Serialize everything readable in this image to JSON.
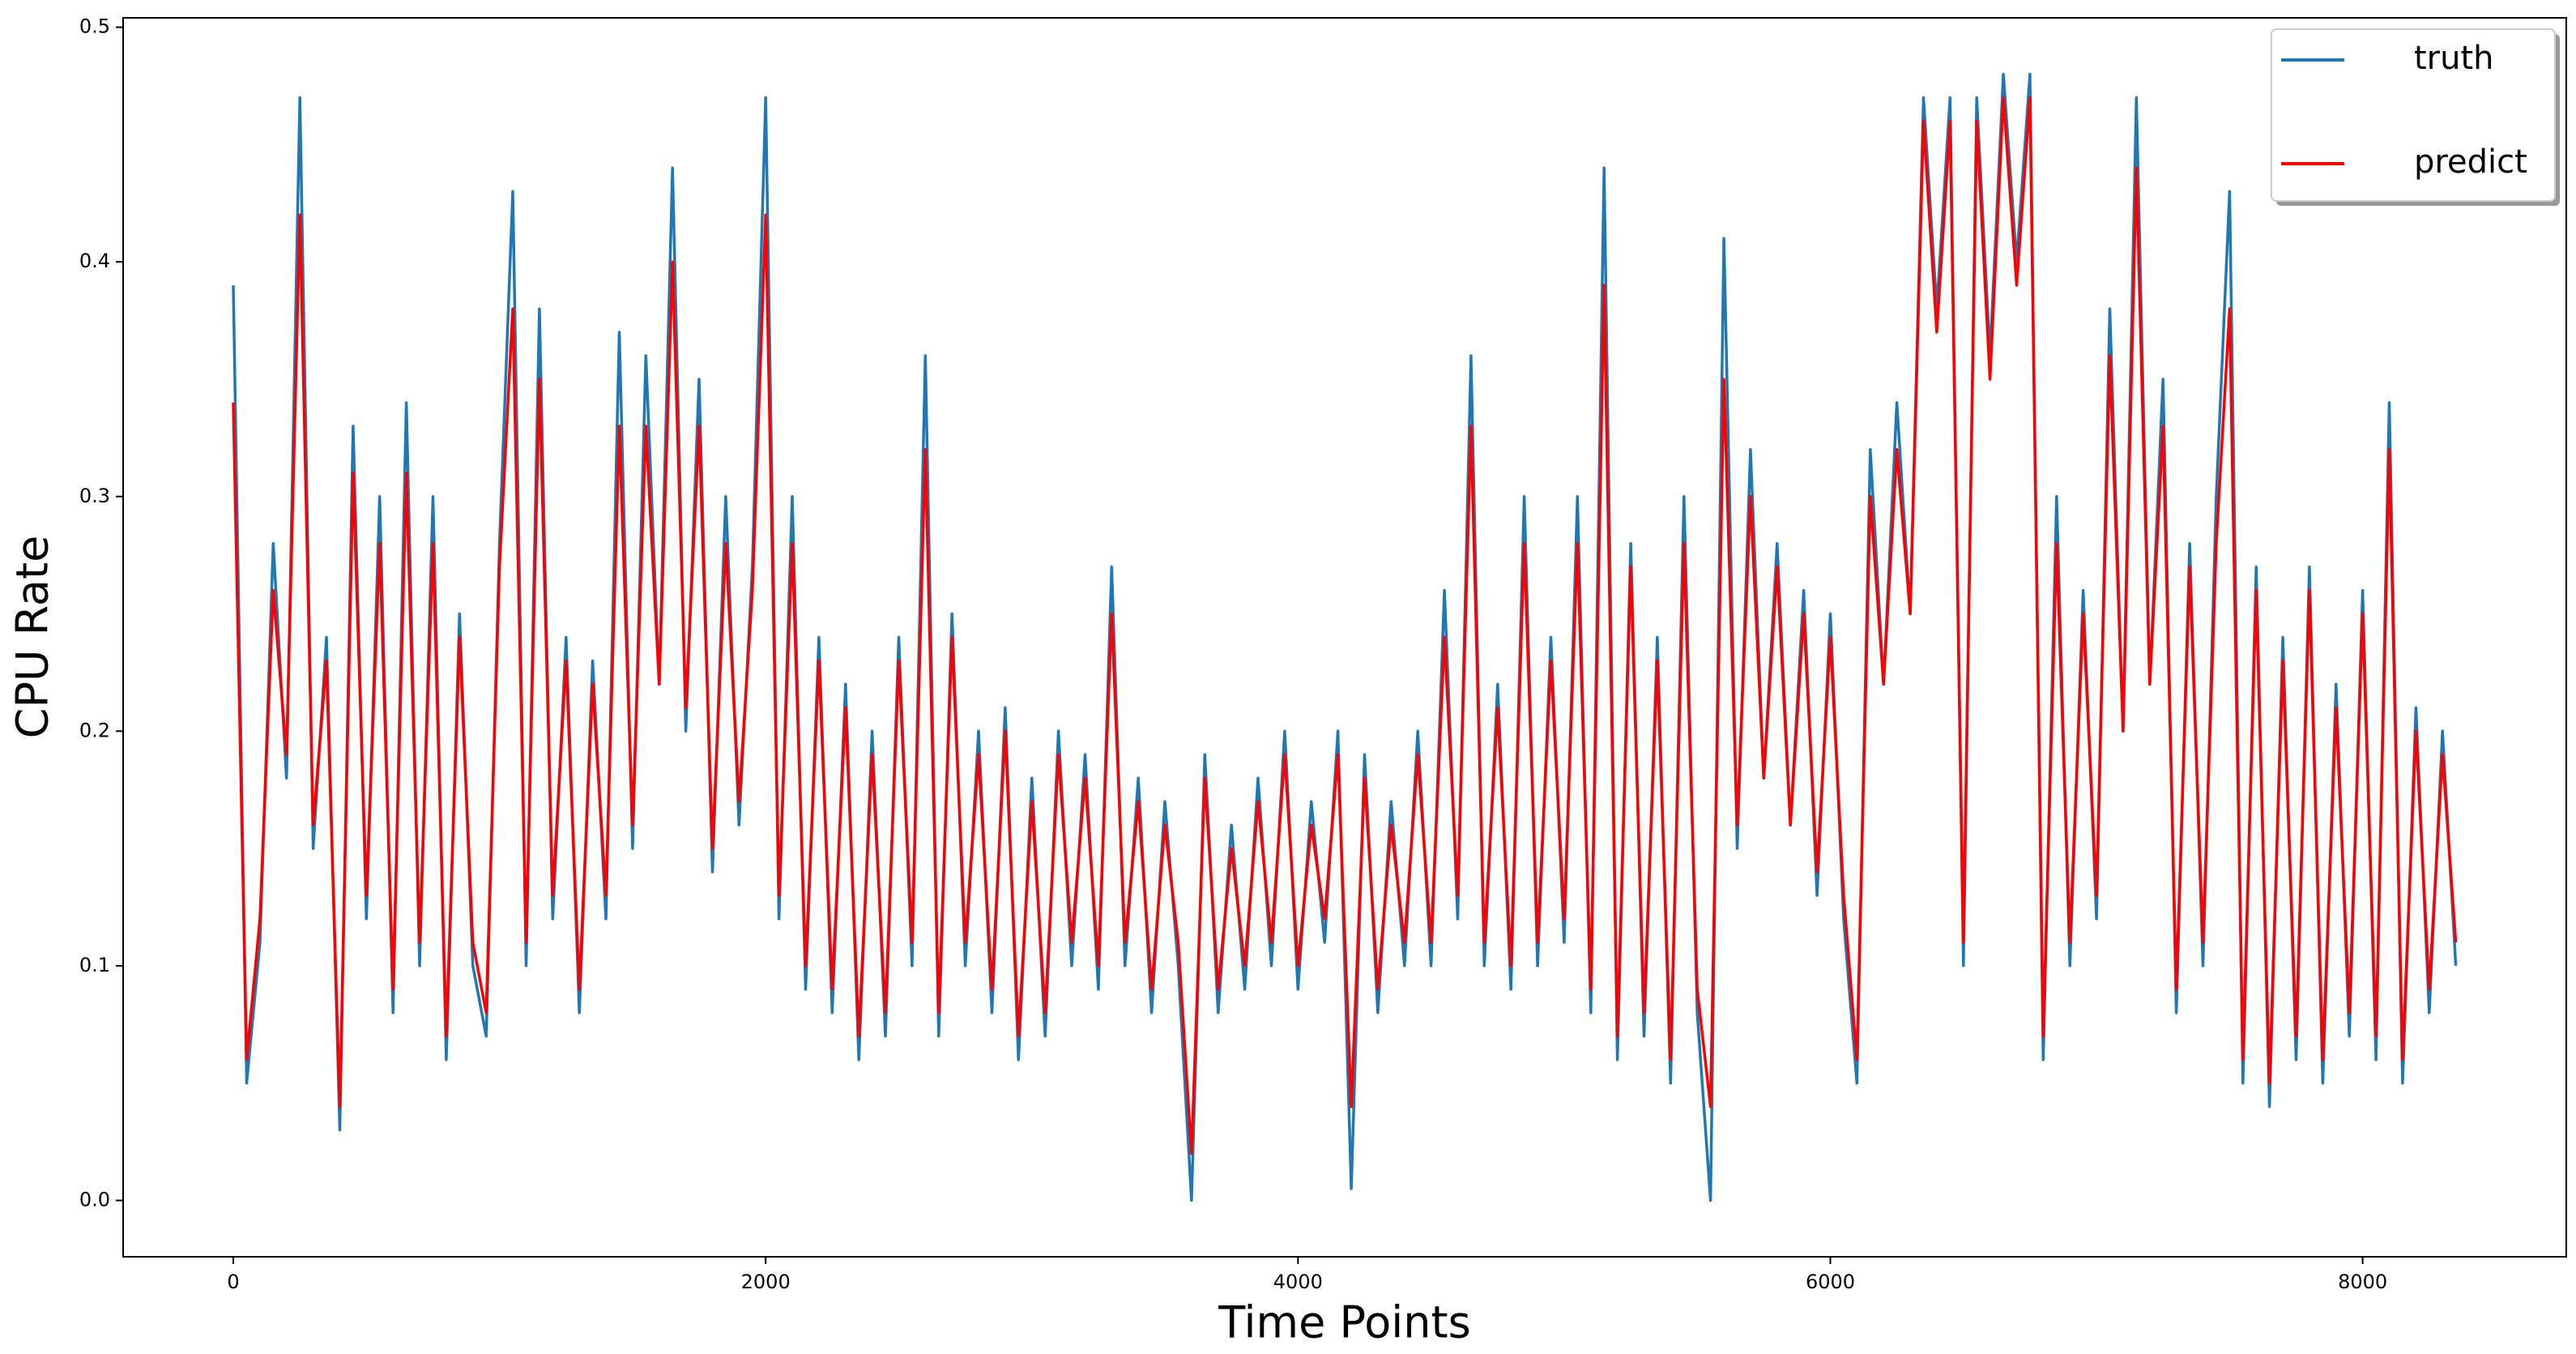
{
  "chart_data": {
    "type": "line",
    "xlabel": "Time Points",
    "ylabel": "CPU Rate",
    "x": [
      0,
      50,
      100,
      150,
      200,
      250,
      300,
      350,
      400,
      450,
      500,
      550,
      600,
      650,
      700,
      750,
      800,
      850,
      900,
      950,
      1000,
      1050,
      1100,
      1150,
      1200,
      1250,
      1300,
      1350,
      1400,
      1450,
      1500,
      1550,
      1600,
      1650,
      1700,
      1750,
      1800,
      1850,
      1900,
      1950,
      2000,
      2050,
      2100,
      2150,
      2200,
      2250,
      2300,
      2350,
      2400,
      2450,
      2500,
      2550,
      2600,
      2650,
      2700,
      2750,
      2800,
      2850,
      2900,
      2950,
      3000,
      3050,
      3100,
      3150,
      3200,
      3250,
      3300,
      3350,
      3400,
      3450,
      3500,
      3550,
      3600,
      3650,
      3700,
      3750,
      3800,
      3850,
      3900,
      3950,
      4000,
      4050,
      4100,
      4150,
      4200,
      4250,
      4300,
      4350,
      4400,
      4450,
      4500,
      4550,
      4600,
      4650,
      4700,
      4750,
      4800,
      4850,
      4900,
      4950,
      5000,
      5050,
      5100,
      5150,
      5200,
      5250,
      5300,
      5350,
      5400,
      5450,
      5500,
      5550,
      5600,
      5650,
      5700,
      5750,
      5800,
      5850,
      5900,
      5950,
      6000,
      6050,
      6100,
      6150,
      6200,
      6250,
      6300,
      6350,
      6400,
      6450,
      6500,
      6550,
      6600,
      6650,
      6700,
      6750,
      6800,
      6850,
      6900,
      6950,
      7000,
      7050,
      7100,
      7150,
      7200,
      7250,
      7300,
      7350,
      7400,
      7450,
      7500,
      7550,
      7600,
      7650,
      7700,
      7750,
      7800,
      7850,
      7900,
      7950,
      8000,
      8050,
      8100,
      8150,
      8200,
      8250,
      8300,
      8350
    ],
    "series": [
      {
        "name": "truth",
        "color": "#1f77b4",
        "values": [
          0.39,
          0.05,
          0.11,
          0.28,
          0.18,
          0.47,
          0.15,
          0.24,
          0.03,
          0.33,
          0.12,
          0.3,
          0.08,
          0.34,
          0.1,
          0.3,
          0.06,
          0.25,
          0.1,
          0.07,
          0.28,
          0.43,
          0.1,
          0.38,
          0.12,
          0.24,
          0.08,
          0.23,
          0.12,
          0.37,
          0.15,
          0.36,
          0.22,
          0.44,
          0.2,
          0.35,
          0.14,
          0.3,
          0.16,
          0.27,
          0.47,
          0.12,
          0.3,
          0.09,
          0.24,
          0.08,
          0.22,
          0.06,
          0.2,
          0.07,
          0.24,
          0.1,
          0.36,
          0.07,
          0.25,
          0.1,
          0.2,
          0.08,
          0.21,
          0.06,
          0.18,
          0.07,
          0.2,
          0.1,
          0.19,
          0.09,
          0.27,
          0.1,
          0.18,
          0.08,
          0.17,
          0.1,
          0.0,
          0.19,
          0.08,
          0.16,
          0.09,
          0.18,
          0.1,
          0.2,
          0.09,
          0.17,
          0.11,
          0.2,
          0.005,
          0.19,
          0.08,
          0.17,
          0.1,
          0.2,
          0.1,
          0.26,
          0.12,
          0.36,
          0.1,
          0.22,
          0.09,
          0.3,
          0.1,
          0.24,
          0.11,
          0.3,
          0.08,
          0.44,
          0.06,
          0.28,
          0.07,
          0.24,
          0.05,
          0.3,
          0.08,
          0.0,
          0.41,
          0.15,
          0.32,
          0.18,
          0.28,
          0.16,
          0.26,
          0.13,
          0.25,
          0.12,
          0.05,
          0.32,
          0.22,
          0.34,
          0.25,
          0.47,
          0.38,
          0.47,
          0.1,
          0.47,
          0.36,
          0.48,
          0.4,
          0.48,
          0.06,
          0.3,
          0.1,
          0.26,
          0.12,
          0.38,
          0.2,
          0.47,
          0.22,
          0.35,
          0.08,
          0.28,
          0.1,
          0.3,
          0.43,
          0.05,
          0.27,
          0.04,
          0.24,
          0.06,
          0.27,
          0.05,
          0.22,
          0.07,
          0.26,
          0.06,
          0.34,
          0.05,
          0.21,
          0.08,
          0.2,
          0.1
        ]
      },
      {
        "name": "predict",
        "color": "#ff0000",
        "values": [
          0.34,
          0.06,
          0.12,
          0.26,
          0.19,
          0.42,
          0.16,
          0.23,
          0.04,
          0.31,
          0.13,
          0.28,
          0.09,
          0.31,
          0.11,
          0.28,
          0.07,
          0.24,
          0.11,
          0.08,
          0.27,
          0.38,
          0.11,
          0.35,
          0.13,
          0.23,
          0.09,
          0.22,
          0.13,
          0.33,
          0.16,
          0.33,
          0.22,
          0.4,
          0.21,
          0.33,
          0.15,
          0.28,
          0.17,
          0.26,
          0.42,
          0.13,
          0.28,
          0.1,
          0.23,
          0.09,
          0.21,
          0.07,
          0.19,
          0.08,
          0.23,
          0.11,
          0.32,
          0.08,
          0.24,
          0.11,
          0.19,
          0.09,
          0.2,
          0.07,
          0.17,
          0.08,
          0.19,
          0.11,
          0.18,
          0.1,
          0.25,
          0.11,
          0.17,
          0.09,
          0.16,
          0.11,
          0.02,
          0.18,
          0.09,
          0.15,
          0.1,
          0.17,
          0.11,
          0.19,
          0.1,
          0.16,
          0.12,
          0.19,
          0.04,
          0.18,
          0.09,
          0.16,
          0.11,
          0.19,
          0.11,
          0.24,
          0.13,
          0.33,
          0.11,
          0.21,
          0.1,
          0.28,
          0.11,
          0.23,
          0.12,
          0.28,
          0.09,
          0.39,
          0.07,
          0.27,
          0.08,
          0.23,
          0.06,
          0.28,
          0.09,
          0.04,
          0.35,
          0.16,
          0.3,
          0.18,
          0.27,
          0.16,
          0.25,
          0.14,
          0.24,
          0.13,
          0.06,
          0.3,
          0.22,
          0.32,
          0.25,
          0.46,
          0.37,
          0.46,
          0.11,
          0.46,
          0.35,
          0.47,
          0.39,
          0.47,
          0.07,
          0.28,
          0.11,
          0.25,
          0.13,
          0.36,
          0.2,
          0.44,
          0.22,
          0.33,
          0.09,
          0.27,
          0.11,
          0.28,
          0.38,
          0.06,
          0.26,
          0.05,
          0.23,
          0.07,
          0.26,
          0.06,
          0.21,
          0.08,
          0.25,
          0.07,
          0.32,
          0.06,
          0.2,
          0.09,
          0.19,
          0.11
        ]
      }
    ],
    "xlim": [
      -414,
      8765
    ],
    "ylim": [
      -0.024,
      0.504
    ],
    "xticks": [
      0,
      2000,
      4000,
      6000,
      8000
    ],
    "yticks": [
      {
        "value": 0,
        "label": "0.0"
      },
      0.1,
      0.2,
      0.3,
      0.4,
      0.5
    ],
    "legend": "upper right"
  }
}
